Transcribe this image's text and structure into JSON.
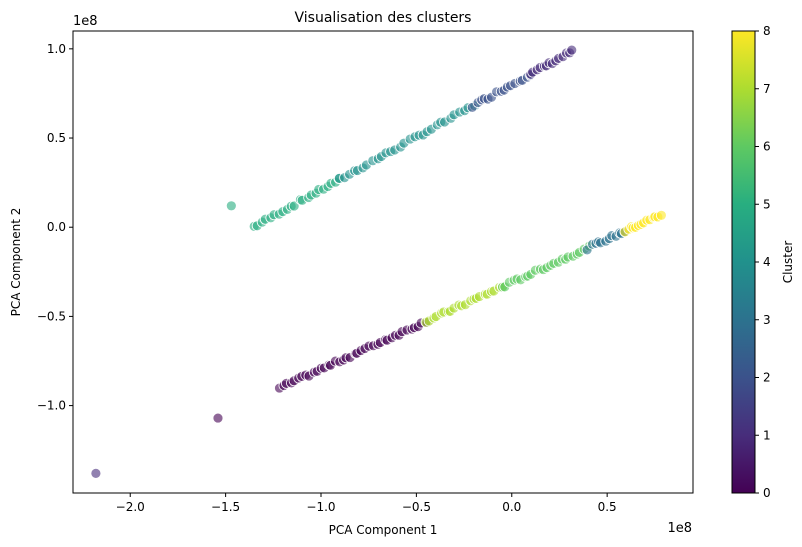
{
  "chart_data": {
    "type": "scatter",
    "title": "Visualisation des clusters",
    "xlabel": "PCA Component 1",
    "ylabel": "PCA Component 2",
    "x_offset_label": "1e8",
    "y_offset_label": "1e8",
    "xlim": [
      -2.3,
      0.95
    ],
    "ylim": [
      -1.49,
      1.1
    ],
    "x_ticks": [
      -2.0,
      -1.5,
      -1.0,
      -0.5,
      0.0,
      0.5
    ],
    "x_tick_labels": [
      "−2.0",
      "−1.5",
      "−1.0",
      "−0.5",
      "0.0",
      "0.5"
    ],
    "y_ticks": [
      -1.0,
      -0.5,
      0.0,
      0.5,
      1.0
    ],
    "y_tick_labels": [
      "−1.0",
      "−0.5",
      "0.0",
      "0.5",
      "1.0"
    ],
    "grid": false,
    "colorbar": {
      "label": "Cluster",
      "min": 0,
      "max": 8,
      "ticks": [
        0,
        1,
        2,
        3,
        4,
        5,
        6,
        7,
        8
      ],
      "colormap": "viridis"
    },
    "point_alpha": 0.6,
    "upper_band": {
      "comment": "upper linear band",
      "segments": [
        {
          "cluster": 5,
          "x_start": -1.35,
          "x_end": -0.9,
          "count": 22
        },
        {
          "cluster": 4,
          "x_start": -0.9,
          "x_end": -0.2,
          "count": 30
        },
        {
          "cluster": 2,
          "x_start": -0.2,
          "x_end": 0.1,
          "count": 16
        },
        {
          "cluster": 1,
          "x_start": 0.1,
          "x_end": 0.32,
          "count": 14
        }
      ],
      "line": {
        "slope": 0.59,
        "intercept": 0.8
      }
    },
    "lower_band": {
      "segments": [
        {
          "cluster": 0,
          "x_start": -1.22,
          "x_end": -0.45,
          "count": 40
        },
        {
          "cluster": 7,
          "x_start": -0.45,
          "x_end": -0.05,
          "count": 22
        },
        {
          "cluster": 6,
          "x_start": -0.05,
          "x_end": 0.4,
          "count": 24
        },
        {
          "cluster": 3,
          "x_start": 0.4,
          "x_end": 0.6,
          "count": 12
        },
        {
          "cluster": 8,
          "x_start": 0.6,
          "x_end": 0.78,
          "count": 14
        }
      ],
      "line": {
        "slope": 0.486,
        "intercept": -0.31
      }
    },
    "outliers": [
      {
        "x": -1.47,
        "y": 0.12,
        "cluster": 5
      },
      {
        "x": -1.54,
        "y": -1.07,
        "cluster": 0
      },
      {
        "x": -2.18,
        "y": -1.38,
        "cluster": 1
      }
    ]
  }
}
